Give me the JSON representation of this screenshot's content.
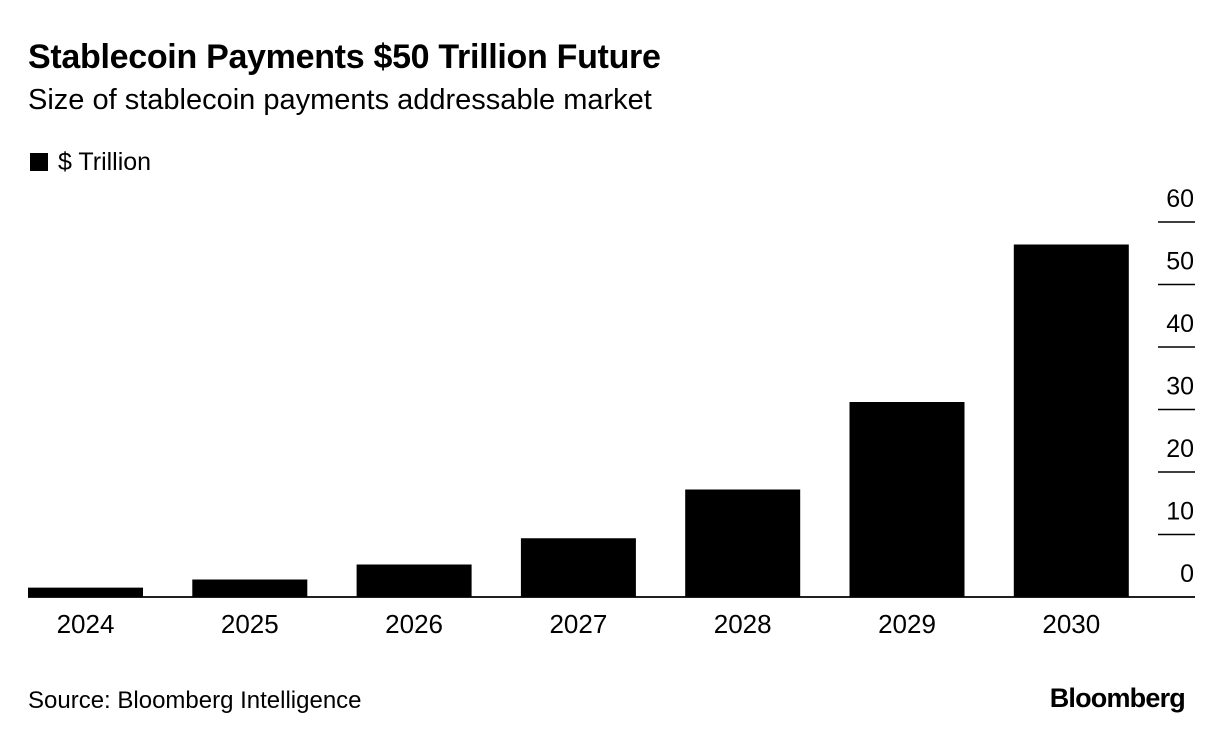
{
  "title": "Stablecoin Payments $50 Trillion Future",
  "subtitle": "Size of stablecoin payments addressable market",
  "source": "Source: Bloomberg Intelligence",
  "brand": "Bloomberg",
  "colors": {
    "bar": "#000000",
    "background": "#ffffff",
    "text": "#000000"
  },
  "chart_data": {
    "type": "bar",
    "categories": [
      "2024",
      "2025",
      "2026",
      "2027",
      "2028",
      "2029",
      "2030"
    ],
    "series": [
      {
        "name": "$ Trillion",
        "values": [
          1.5,
          2.8,
          5.2,
          9.4,
          17.2,
          31.2,
          56.4
        ]
      }
    ],
    "ylim": [
      0,
      60
    ],
    "yticks": [
      0,
      10,
      20,
      30,
      40,
      50,
      60
    ],
    "y_axis_position": "right",
    "xlabel": "",
    "ylabel": "",
    "legend_position": "top-left",
    "grid": false
  }
}
